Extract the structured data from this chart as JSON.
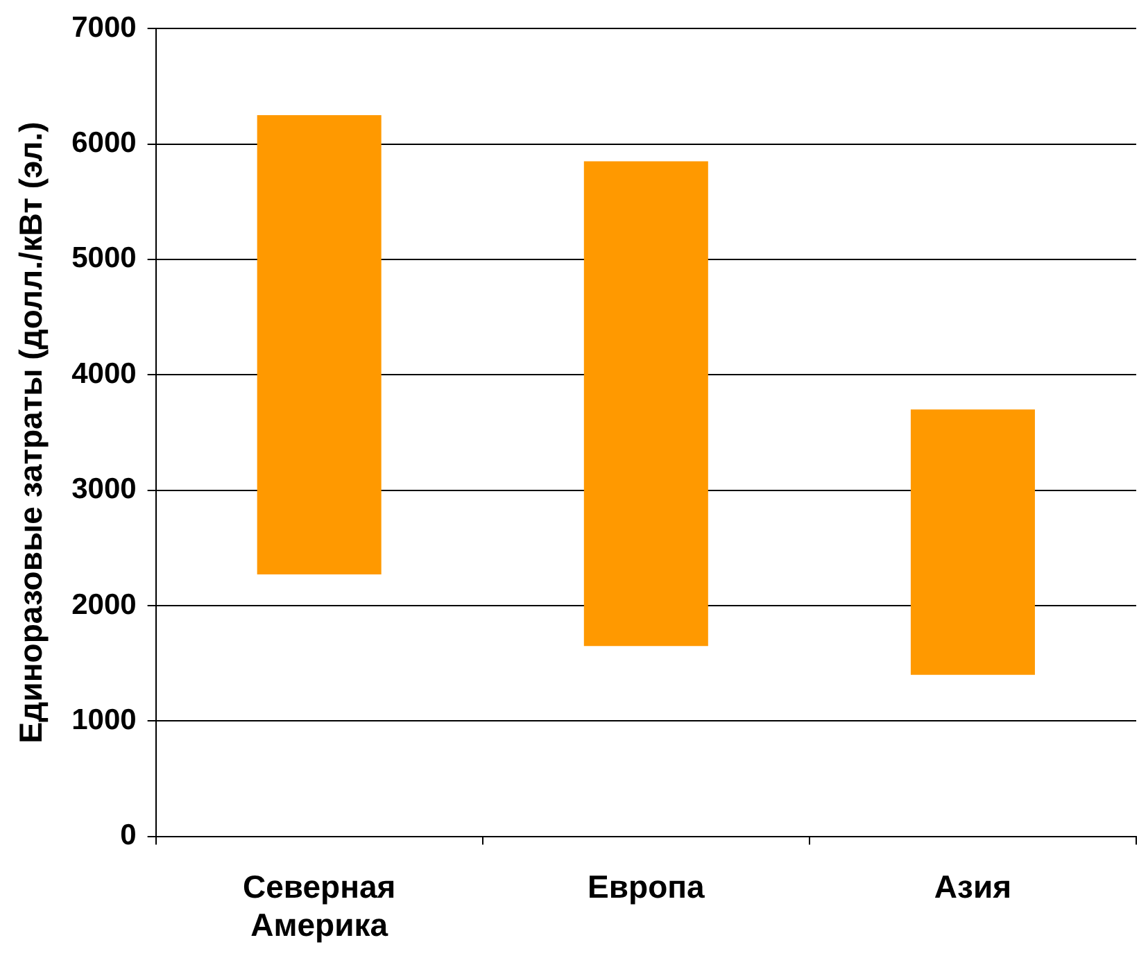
{
  "chart_data": {
    "type": "bar",
    "ylabel": "Единоразовые затраты (долл./кВт (эл.)",
    "categories": [
      "Северная Америка",
      "Европа",
      "Азия"
    ],
    "values": [
      3980,
      4200,
      2300
    ],
    "base": [
      2270,
      1650,
      1400
    ],
    "color": "#ff9900",
    "ylim": [
      0,
      7000
    ],
    "yticks": [
      0,
      1000,
      2000,
      3000,
      4000,
      5000,
      6000,
      7000
    ],
    "grid": "y",
    "legend": false
  }
}
